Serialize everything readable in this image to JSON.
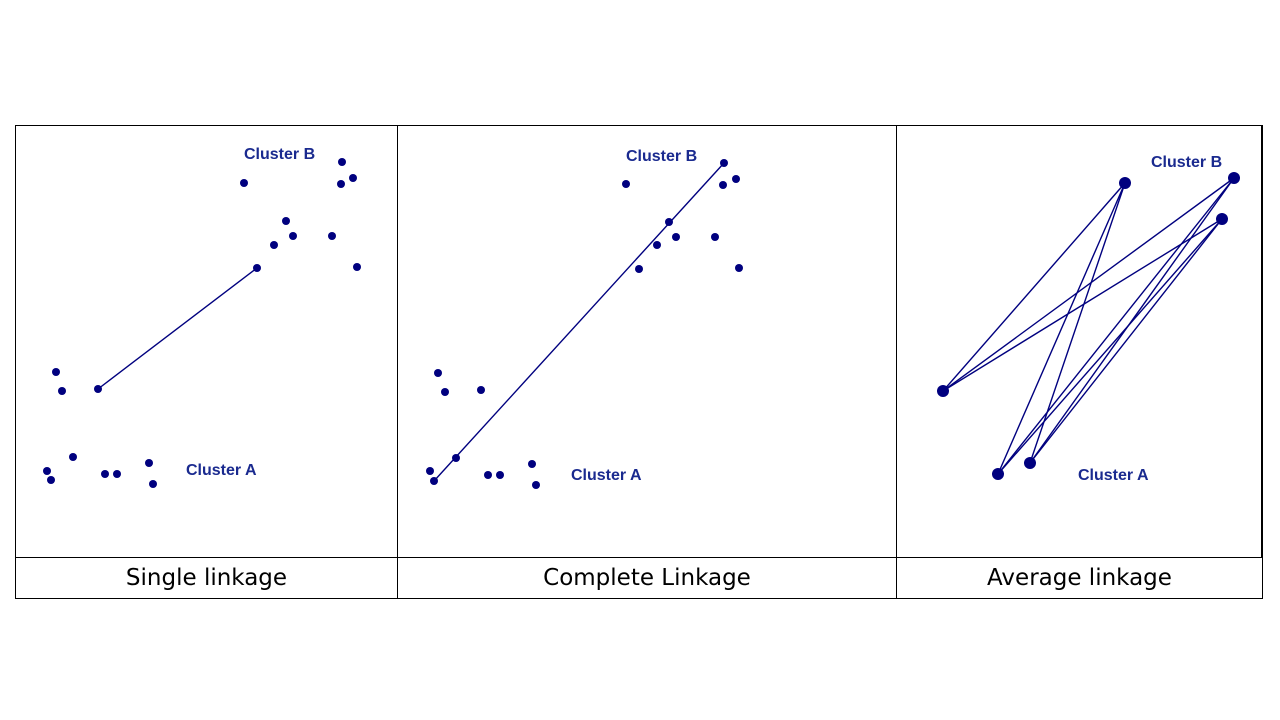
{
  "colors": {
    "points": "#00007f",
    "lines": "#00007f",
    "labels": "#1a2a8f",
    "border": "#000000"
  },
  "panels": [
    {
      "id": "single",
      "caption": "Single linkage",
      "label_a": "Cluster A",
      "label_b": "Cluster B",
      "cluster_a_points": [
        [
          55,
          371
        ],
        [
          61,
          390
        ],
        [
          97,
          388
        ],
        [
          72,
          456
        ],
        [
          46,
          470
        ],
        [
          50,
          479
        ],
        [
          104,
          473
        ],
        [
          116,
          473
        ],
        [
          148,
          462
        ],
        [
          152,
          483
        ]
      ],
      "cluster_b_points": [
        [
          243,
          182
        ],
        [
          341,
          161
        ],
        [
          352,
          177
        ],
        [
          340,
          183
        ],
        [
          285,
          220
        ],
        [
          273,
          244
        ],
        [
          292,
          235
        ],
        [
          331,
          235
        ],
        [
          256,
          267
        ],
        [
          356,
          266
        ]
      ],
      "links": [
        [
          [
            97,
            388
          ],
          [
            256,
            267
          ]
        ]
      ],
      "point_radius": 4
    },
    {
      "id": "complete",
      "caption": "Complete Linkage",
      "label_a": "Cluster A",
      "label_b": "Cluster B",
      "cluster_a_points": [
        [
          437,
          372
        ],
        [
          444,
          391
        ],
        [
          480,
          389
        ],
        [
          455,
          457
        ],
        [
          429,
          470
        ],
        [
          433,
          480
        ],
        [
          487,
          474
        ],
        [
          499,
          474
        ],
        [
          531,
          463
        ],
        [
          535,
          484
        ]
      ],
      "cluster_b_points": [
        [
          625,
          183
        ],
        [
          723,
          162
        ],
        [
          735,
          178
        ],
        [
          722,
          184
        ],
        [
          668,
          221
        ],
        [
          656,
          244
        ],
        [
          675,
          236
        ],
        [
          714,
          236
        ],
        [
          638,
          268
        ],
        [
          738,
          267
        ]
      ],
      "links": [
        [
          [
            433,
            480
          ],
          [
            723,
            162
          ]
        ]
      ],
      "point_radius": 4
    },
    {
      "id": "average",
      "caption": "Average linkage",
      "label_a": "Cluster A",
      "label_b": "Cluster B",
      "cluster_a_points": [
        [
          942,
          390
        ],
        [
          997,
          473
        ],
        [
          1029,
          462
        ]
      ],
      "cluster_b_points": [
        [
          1124,
          182
        ],
        [
          1233,
          177
        ],
        [
          1221,
          218
        ]
      ],
      "links": [
        [
          [
            942,
            390
          ],
          [
            1124,
            182
          ]
        ],
        [
          [
            942,
            390
          ],
          [
            1233,
            177
          ]
        ],
        [
          [
            942,
            390
          ],
          [
            1221,
            218
          ]
        ],
        [
          [
            997,
            473
          ],
          [
            1124,
            182
          ]
        ],
        [
          [
            997,
            473
          ],
          [
            1233,
            177
          ]
        ],
        [
          [
            997,
            473
          ],
          [
            1221,
            218
          ]
        ],
        [
          [
            1029,
            462
          ],
          [
            1124,
            182
          ]
        ],
        [
          [
            1029,
            462
          ],
          [
            1233,
            177
          ]
        ],
        [
          [
            1029,
            462
          ],
          [
            1221,
            218
          ]
        ]
      ],
      "point_radius": 6
    }
  ]
}
